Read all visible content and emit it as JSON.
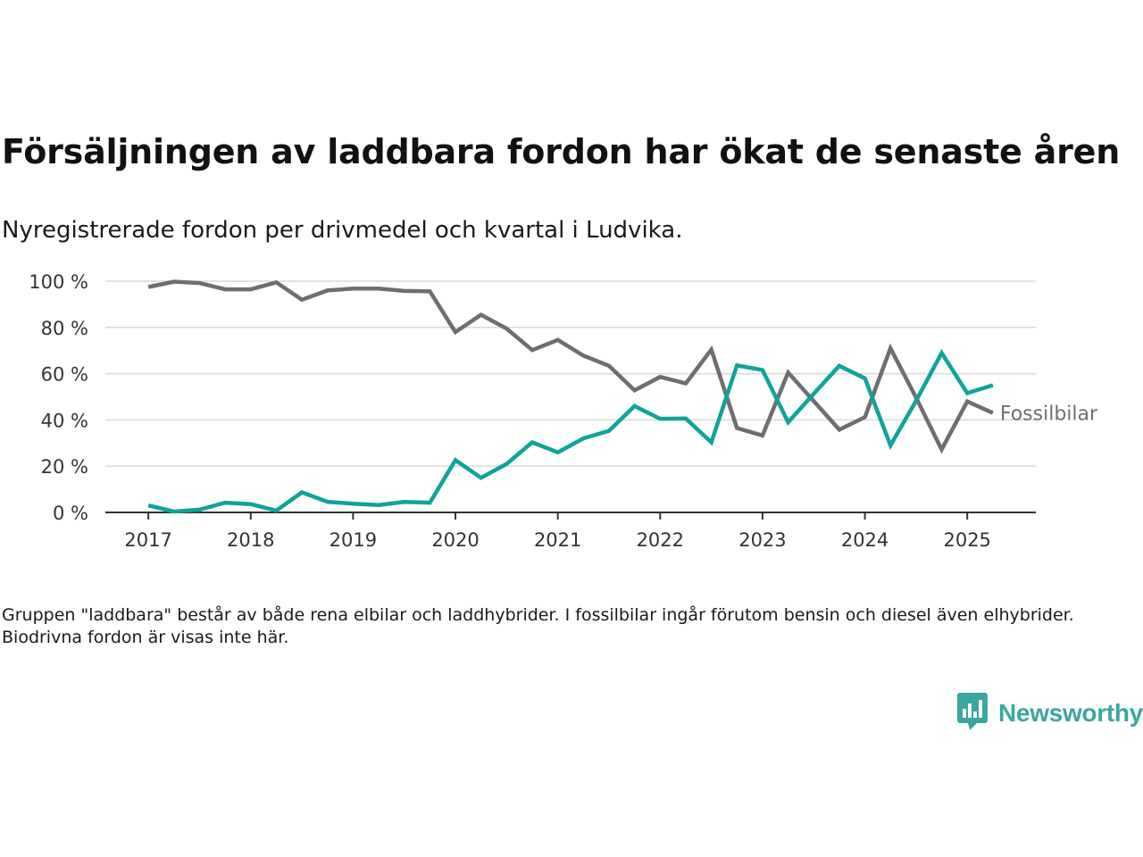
{
  "title": "Försäljningen av laddbara fordon har ökat de senaste åren",
  "subtitle": "Nyregistrerade fordon per drivmedel och kvartal i Ludvika.",
  "footnote": "Gruppen \"laddbara\" består av både rena elbilar och laddhybrider. I fossilbilar ingår förutom bensin och diesel även elhybrider. Biodrivna fordon är visas inte här.",
  "logo": {
    "text": "Newsworthy",
    "icon": "bar-chart-speech-bubble-icon",
    "color": "#3aa6a0"
  },
  "chart_data": {
    "type": "line",
    "x_ticks": [
      2017,
      2018,
      2019,
      2020,
      2021,
      2022,
      2023,
      2024,
      2025
    ],
    "x_tick_labels": [
      "2017",
      "2018",
      "2019",
      "2020",
      "2021",
      "2022",
      "2023",
      "2024",
      "2025"
    ],
    "y_ticks": [
      0,
      20,
      40,
      60,
      80,
      100
    ],
    "y_tick_labels": [
      "0 %",
      "20 %",
      "40 %",
      "60 %",
      "80 %",
      "100 %"
    ],
    "xlim": [
      2016.58,
      2025.67
    ],
    "ylim": [
      0,
      100
    ],
    "grid": "horizontal",
    "x": [
      "2017 Q1",
      "2017 Q2",
      "2017 Q3",
      "2017 Q4",
      "2018 Q1",
      "2018 Q2",
      "2018 Q3",
      "2018 Q4",
      "2019 Q1",
      "2019 Q2",
      "2019 Q3",
      "2019 Q4",
      "2020 Q1",
      "2020 Q2",
      "2020 Q3",
      "2020 Q4",
      "2021 Q1",
      "2021 Q2",
      "2021 Q3",
      "2021 Q4",
      "2022 Q1",
      "2022 Q2",
      "2022 Q3",
      "2022 Q4",
      "2023 Q1",
      "2023 Q2",
      "2023 Q3",
      "2023 Q4",
      "2024 Q1",
      "2024 Q2",
      "2024 Q3",
      "2024 Q4",
      "2025 Q1",
      "2025 Q2"
    ],
    "series": [
      {
        "name": "Fossilbilar",
        "color": "#6e6d72",
        "values": [
          97.5,
          99.8,
          99.2,
          96.5,
          96.5,
          99.5,
          92,
          96,
          96.8,
          96.8,
          95.8,
          95.6,
          78,
          85.5,
          79.5,
          70.2,
          74.6,
          67.8,
          63.4,
          52.8,
          58.6,
          55.8,
          70.4,
          36.5,
          33.3,
          60.5,
          48.2,
          35.8,
          41.2,
          71,
          49.6,
          27.2,
          48,
          43
        ]
      },
      {
        "name": "",
        "color": "#10a399",
        "values": [
          3,
          0.4,
          1.2,
          4.2,
          3.6,
          0.8,
          8.7,
          4.6,
          3.8,
          3.2,
          4.5,
          4.2,
          22.6,
          15,
          21,
          30.3,
          26,
          32,
          35.3,
          46,
          40.5,
          40.6,
          30.3,
          63.6,
          61.6,
          39,
          51.3,
          63.4,
          58,
          29,
          48.3,
          69,
          51.6,
          55
        ]
      }
    ]
  }
}
